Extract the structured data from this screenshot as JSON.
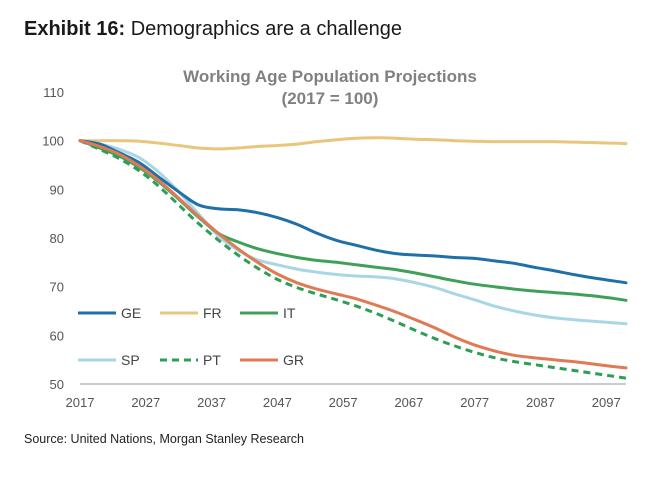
{
  "exhibit": {
    "number": "Exhibit 16:",
    "title": "Demographics are a challenge"
  },
  "source": "Source: United Nations, Morgan Stanley Research",
  "chart_data": {
    "type": "line",
    "title": "Working Age Population Projections",
    "subtitle": "(2017 = 100)",
    "xlabel": "",
    "ylabel": "",
    "xlim": [
      2017,
      2100
    ],
    "ylim": [
      50,
      110
    ],
    "x_ticks": [
      2017,
      2027,
      2037,
      2047,
      2057,
      2067,
      2077,
      2087,
      2097
    ],
    "y_ticks": [
      50,
      60,
      70,
      80,
      90,
      100,
      110
    ],
    "grid": false,
    "legend": "inside-bottom-left",
    "x": [
      2017,
      2020,
      2023,
      2026,
      2029,
      2032,
      2035,
      2038,
      2041,
      2044,
      2047,
      2050,
      2053,
      2056,
      2059,
      2062,
      2065,
      2068,
      2071,
      2074,
      2077,
      2080,
      2083,
      2086,
      2089,
      2092,
      2095,
      2098,
      2100
    ],
    "series": [
      {
        "name": "GE",
        "color": "#1f6fa8",
        "dash": false,
        "values": [
          100,
          99.3,
          97.5,
          95.5,
          92.5,
          89.5,
          86.8,
          86.0,
          85.8,
          85.2,
          84.2,
          82.8,
          81.0,
          79.5,
          78.5,
          77.5,
          76.8,
          76.5,
          76.3,
          76.0,
          75.8,
          75.3,
          74.8,
          74.0,
          73.3,
          72.5,
          71.8,
          71.2,
          70.8
        ]
      },
      {
        "name": "FR",
        "color": "#e8c77d",
        "dash": false,
        "values": [
          100,
          100,
          100,
          99.9,
          99.5,
          99.0,
          98.5,
          98.3,
          98.5,
          98.8,
          99.0,
          99.3,
          99.8,
          100.2,
          100.5,
          100.6,
          100.5,
          100.3,
          100.2,
          100.0,
          99.9,
          99.8,
          99.8,
          99.8,
          99.8,
          99.7,
          99.6,
          99.5,
          99.4
        ]
      },
      {
        "name": "IT",
        "color": "#3fa05a",
        "dash": false,
        "values": [
          100,
          98.5,
          96.8,
          94.5,
          91.5,
          88.0,
          84.3,
          81.0,
          79.2,
          77.8,
          76.8,
          76.0,
          75.4,
          75.0,
          74.5,
          74.0,
          73.5,
          72.8,
          72.0,
          71.2,
          70.5,
          70.0,
          69.5,
          69.1,
          68.8,
          68.5,
          68.1,
          67.6,
          67.2
        ]
      },
      {
        "name": "SP",
        "color": "#a9d6e5",
        "dash": false,
        "values": [
          100,
          99.3,
          98.2,
          96.5,
          93.5,
          89.5,
          85.0,
          80.5,
          77.5,
          75.5,
          74.5,
          73.6,
          73.0,
          72.5,
          72.2,
          72.0,
          71.6,
          70.8,
          69.8,
          68.5,
          67.3,
          66.0,
          65.0,
          64.2,
          63.6,
          63.2,
          62.9,
          62.6,
          62.4
        ]
      },
      {
        "name": "PT",
        "color": "#2e9e57",
        "dash": true,
        "values": [
          100,
          98.2,
          96.3,
          93.8,
          90.6,
          86.8,
          83.0,
          79.6,
          76.5,
          73.8,
          71.5,
          69.8,
          68.5,
          67.3,
          66.0,
          64.5,
          62.8,
          61.0,
          59.3,
          57.8,
          56.5,
          55.4,
          54.6,
          54.0,
          53.4,
          52.8,
          52.2,
          51.6,
          51.2
        ]
      },
      {
        "name": "GR",
        "color": "#e07a55",
        "dash": false,
        "values": [
          100,
          98.8,
          97.2,
          94.8,
          91.8,
          88.2,
          84.5,
          81.0,
          77.8,
          75.0,
          72.6,
          70.8,
          69.5,
          68.5,
          67.5,
          66.2,
          64.8,
          63.2,
          61.5,
          59.6,
          58.0,
          56.8,
          55.9,
          55.4,
          55.0,
          54.6,
          54.1,
          53.6,
          53.3
        ]
      }
    ]
  }
}
